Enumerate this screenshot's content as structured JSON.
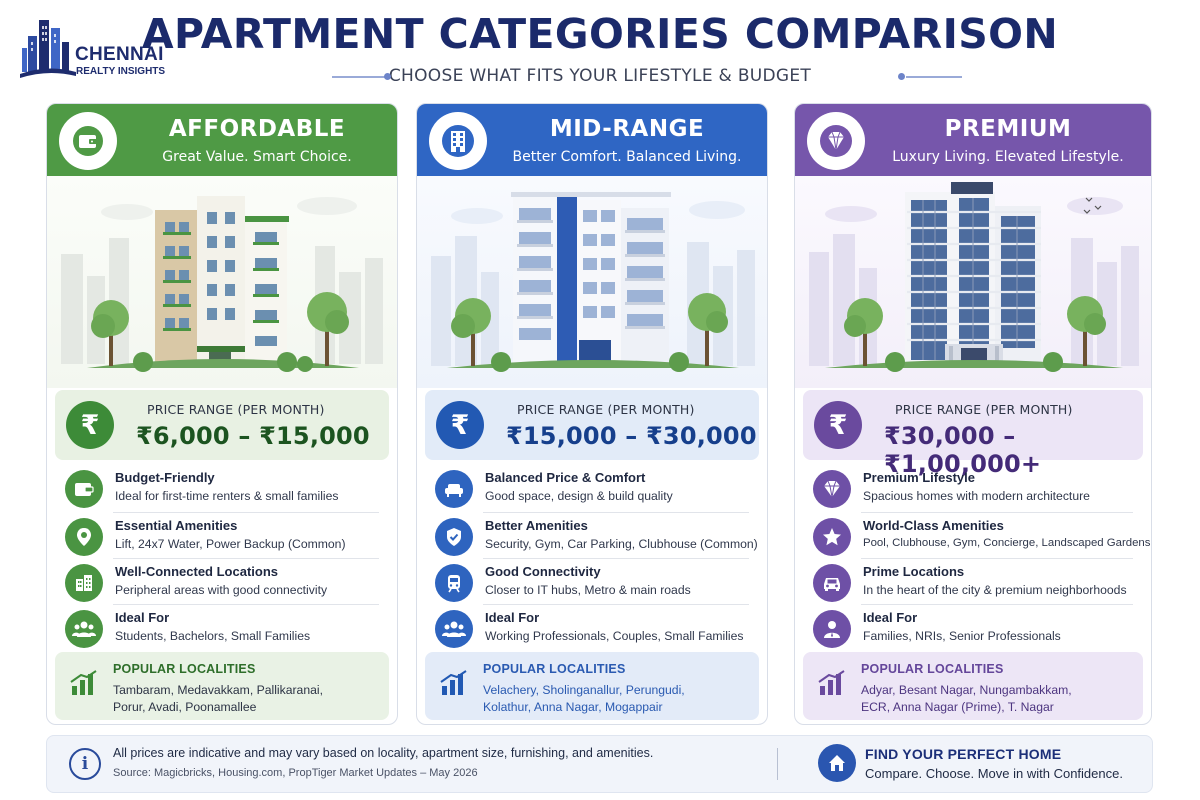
{
  "logo": {
    "line1": "CHENNAI",
    "line2": "REALTY INSIGHTS"
  },
  "title": "APARTMENT CATEGORIES COMPARISON",
  "subtitle": "CHOOSE WHAT FITS YOUR LIFESTYLE & BUDGET",
  "price_label": "PRICE RANGE (PER MONTH)",
  "localities_label": "POPULAR LOCALITIES",
  "colors": {
    "affordable": "#4f9a45",
    "mid_range": "#2f66c4",
    "premium": "#7656ab",
    "title": "#1b2a6b"
  },
  "cards": [
    {
      "name": "AFFORDABLE",
      "tagline": "Great Value. Smart Choice.",
      "icon": "wallet-icon",
      "price": "₹6,000 – ₹15,000",
      "features": [
        {
          "icon": "wallet-icon",
          "title": "Budget-Friendly",
          "desc": "Ideal for first-time renters & small families"
        },
        {
          "icon": "location-pin-icon",
          "title": "Essential Amenities",
          "desc": "Lift, 24x7 Water, Power Backup (Common)"
        },
        {
          "icon": "buildings-icon",
          "title": "Well-Connected Locations",
          "desc": "Peripheral areas with good connectivity"
        },
        {
          "icon": "people-icon",
          "title": "Ideal For",
          "desc": "Students, Bachelors, Small Families"
        }
      ],
      "localities": [
        "Tambaram, Medavakkam, Pallikaranai,",
        "Porur, Avadi, Poonamallee"
      ]
    },
    {
      "name": "MID-RANGE",
      "tagline": "Better Comfort. Balanced Living.",
      "icon": "building-icon",
      "price": "₹15,000 – ₹30,000",
      "features": [
        {
          "icon": "sofa-icon",
          "title": "Balanced Price & Comfort",
          "desc": "Good space, design & build quality"
        },
        {
          "icon": "shield-check-icon",
          "title": "Better Amenities",
          "desc": "Security, Gym, Car Parking, Clubhouse (Common)"
        },
        {
          "icon": "metro-train-icon",
          "title": "Good Connectivity",
          "desc": "Closer to IT hubs, Metro & main roads"
        },
        {
          "icon": "people-icon",
          "title": "Ideal For",
          "desc": "Working Professionals, Couples, Small Families"
        }
      ],
      "localities": [
        "Velachery, Sholinganallur, Perungudi,",
        "Kolathur, Anna Nagar, Mogappair"
      ]
    },
    {
      "name": "PREMIUM",
      "tagline": "Luxury Living. Elevated Lifestyle.",
      "icon": "diamond-icon",
      "price": "₹30,000 – ₹1,00,000+",
      "features": [
        {
          "icon": "diamond-icon",
          "title": "Premium Lifestyle",
          "desc": "Spacious homes with modern architecture"
        },
        {
          "icon": "star-icon",
          "title": "World-Class Amenities",
          "desc": "Pool, Clubhouse, Gym, Concierge, Landscaped Gardens"
        },
        {
          "icon": "car-icon",
          "title": "Prime Locations",
          "desc": "In the heart of the city & premium neighborhoods"
        },
        {
          "icon": "person-icon",
          "title": "Ideal For",
          "desc": "Families, NRIs, Senior Professionals"
        }
      ],
      "localities": [
        "Adyar, Besant Nagar, Nungambakkam,",
        "ECR, Anna Nagar (Prime), T. Nagar"
      ]
    }
  ],
  "footer": {
    "note": "All prices are indicative and may vary based on locality, apartment size, furnishing, and amenities.",
    "source": "Source: Magicbricks, Housing.com, PropTiger Market Updates – May 2026",
    "cta_title": "FIND YOUR PERFECT HOME",
    "cta_sub": "Compare. Choose. Move in with Confidence."
  }
}
